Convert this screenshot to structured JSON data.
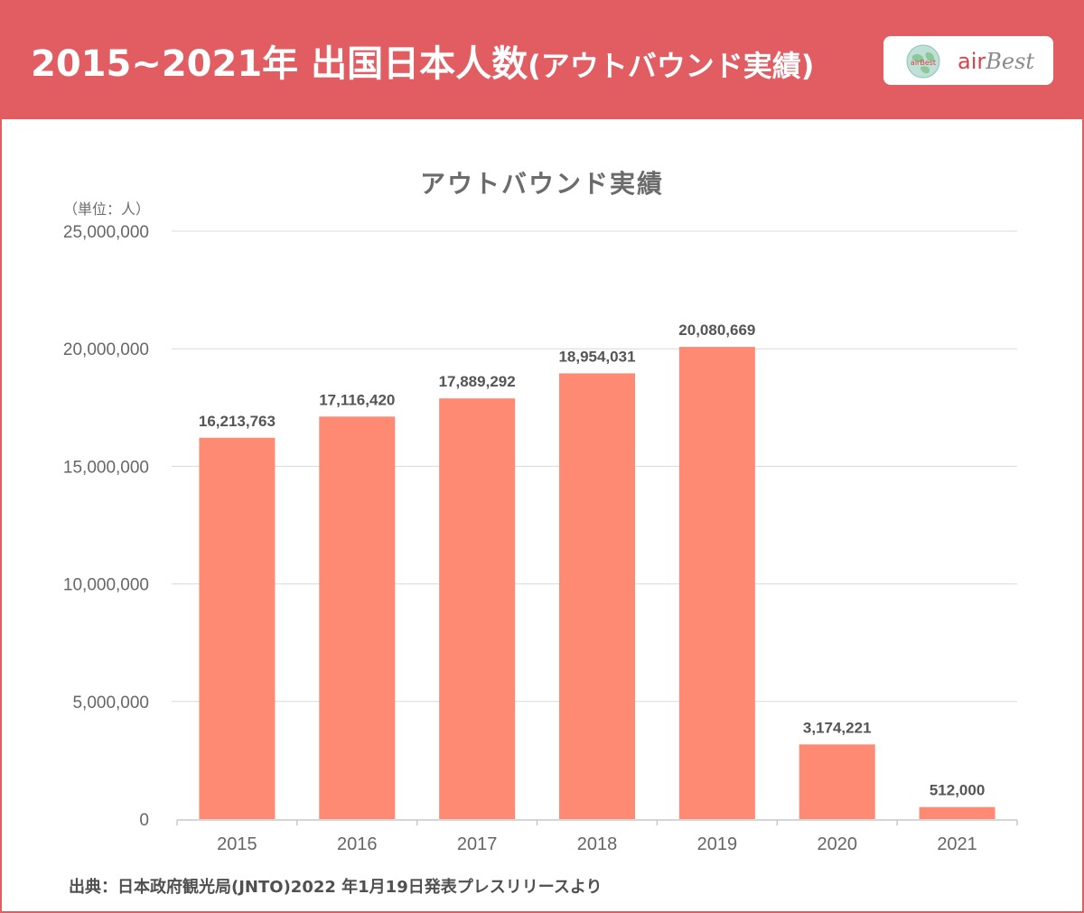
{
  "header": {
    "title": "2015~2021年 出国日本人数",
    "title_suffix": "(アウトバウンド実績)",
    "logo_air": "air",
    "logo_best": "Best",
    "logo_globe_text": "airBest"
  },
  "colors": {
    "header_bg": "#e15d62",
    "bar": "#ff8a73",
    "grid": "#d9d9d9",
    "axis_text": "#666666"
  },
  "chart_data": {
    "type": "bar",
    "title": "アウトバウンド実績",
    "unit_label": "（単位：人）",
    "categories": [
      "2015",
      "2016",
      "2017",
      "2018",
      "2019",
      "2020",
      "2021"
    ],
    "values": [
      16213763,
      17116420,
      17889292,
      18954031,
      20080669,
      3174221,
      512000
    ],
    "value_labels": [
      "16,213,763",
      "17,116,420",
      "17,889,292",
      "18,954,031",
      "20,080,669",
      "3,174,221",
      "512,000"
    ],
    "y_ticks": [
      0,
      5000000,
      10000000,
      15000000,
      20000000,
      25000000
    ],
    "y_tick_labels": [
      "0",
      "5,000,000",
      "10,000,000",
      "15,000,000",
      "20,000,000",
      "25,000,000"
    ],
    "ylim": [
      0,
      25000000
    ],
    "grid": true,
    "xlabel": "",
    "ylabel": ""
  },
  "footer": {
    "source": "出典：日本政府観光局(JNTO)2022 年1月19日発表プレスリリースより"
  }
}
